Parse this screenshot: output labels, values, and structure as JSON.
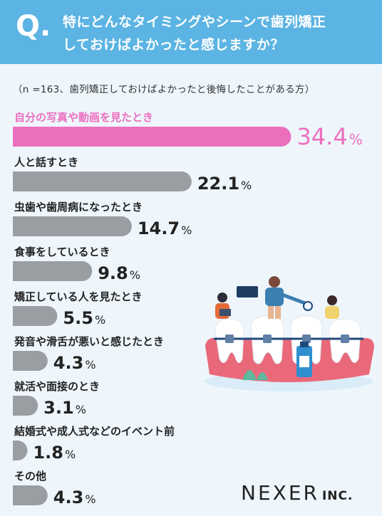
{
  "header": {
    "q_mark": "Q.",
    "question_line1": "特にどんなタイミングやシーンで歯列矯正",
    "question_line2": "しておけばよかったと感じますか？"
  },
  "note": "（n =163、歯列矯正しておけばよかったと後悔したことがある方）",
  "colors": {
    "header": "#5bb4e3",
    "highlight": "#ec6fbe",
    "bar": "#9a9ea3",
    "text": "#333333"
  },
  "chart_data": {
    "type": "bar",
    "orientation": "horizontal",
    "unit": "%",
    "categories": [
      "自分の写真や動画を見たとき",
      "人と話すとき",
      "虫歯や歯周病になったとき",
      "食事をしているとき",
      "矯正している人を見たとき",
      "発音や滑舌が悪いと感じたとき",
      "就活や面接のとき",
      "結婚式や成人式などのイベント前",
      "その他"
    ],
    "values": [
      34.4,
      22.1,
      14.7,
      9.8,
      5.5,
      4.3,
      3.1,
      1.8,
      4.3
    ],
    "highlight_index": 0
  },
  "logo": {
    "main": "NEXER",
    "sub": "INC."
  },
  "illustration": {
    "name": "dentist-braces-illustration"
  }
}
